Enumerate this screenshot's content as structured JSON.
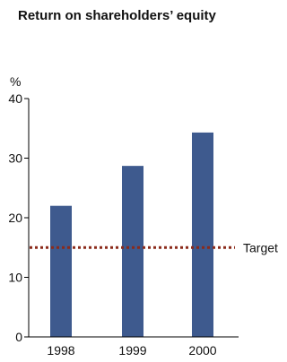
{
  "chart_data": {
    "type": "bar",
    "title": "Return on shareholders’ equity",
    "ylabel": "%",
    "xlabel": "",
    "categories": [
      "1998",
      "1999",
      "2000"
    ],
    "values": [
      22,
      28.7,
      34.3
    ],
    "ylim": [
      0,
      40
    ],
    "yticks": [
      0,
      10,
      20,
      30,
      40
    ],
    "grid": false,
    "bar_color": "#3e5a8e",
    "reference_line": {
      "label": "Target",
      "value": 15,
      "color": "#8b2a1a",
      "style": "dotted"
    }
  }
}
